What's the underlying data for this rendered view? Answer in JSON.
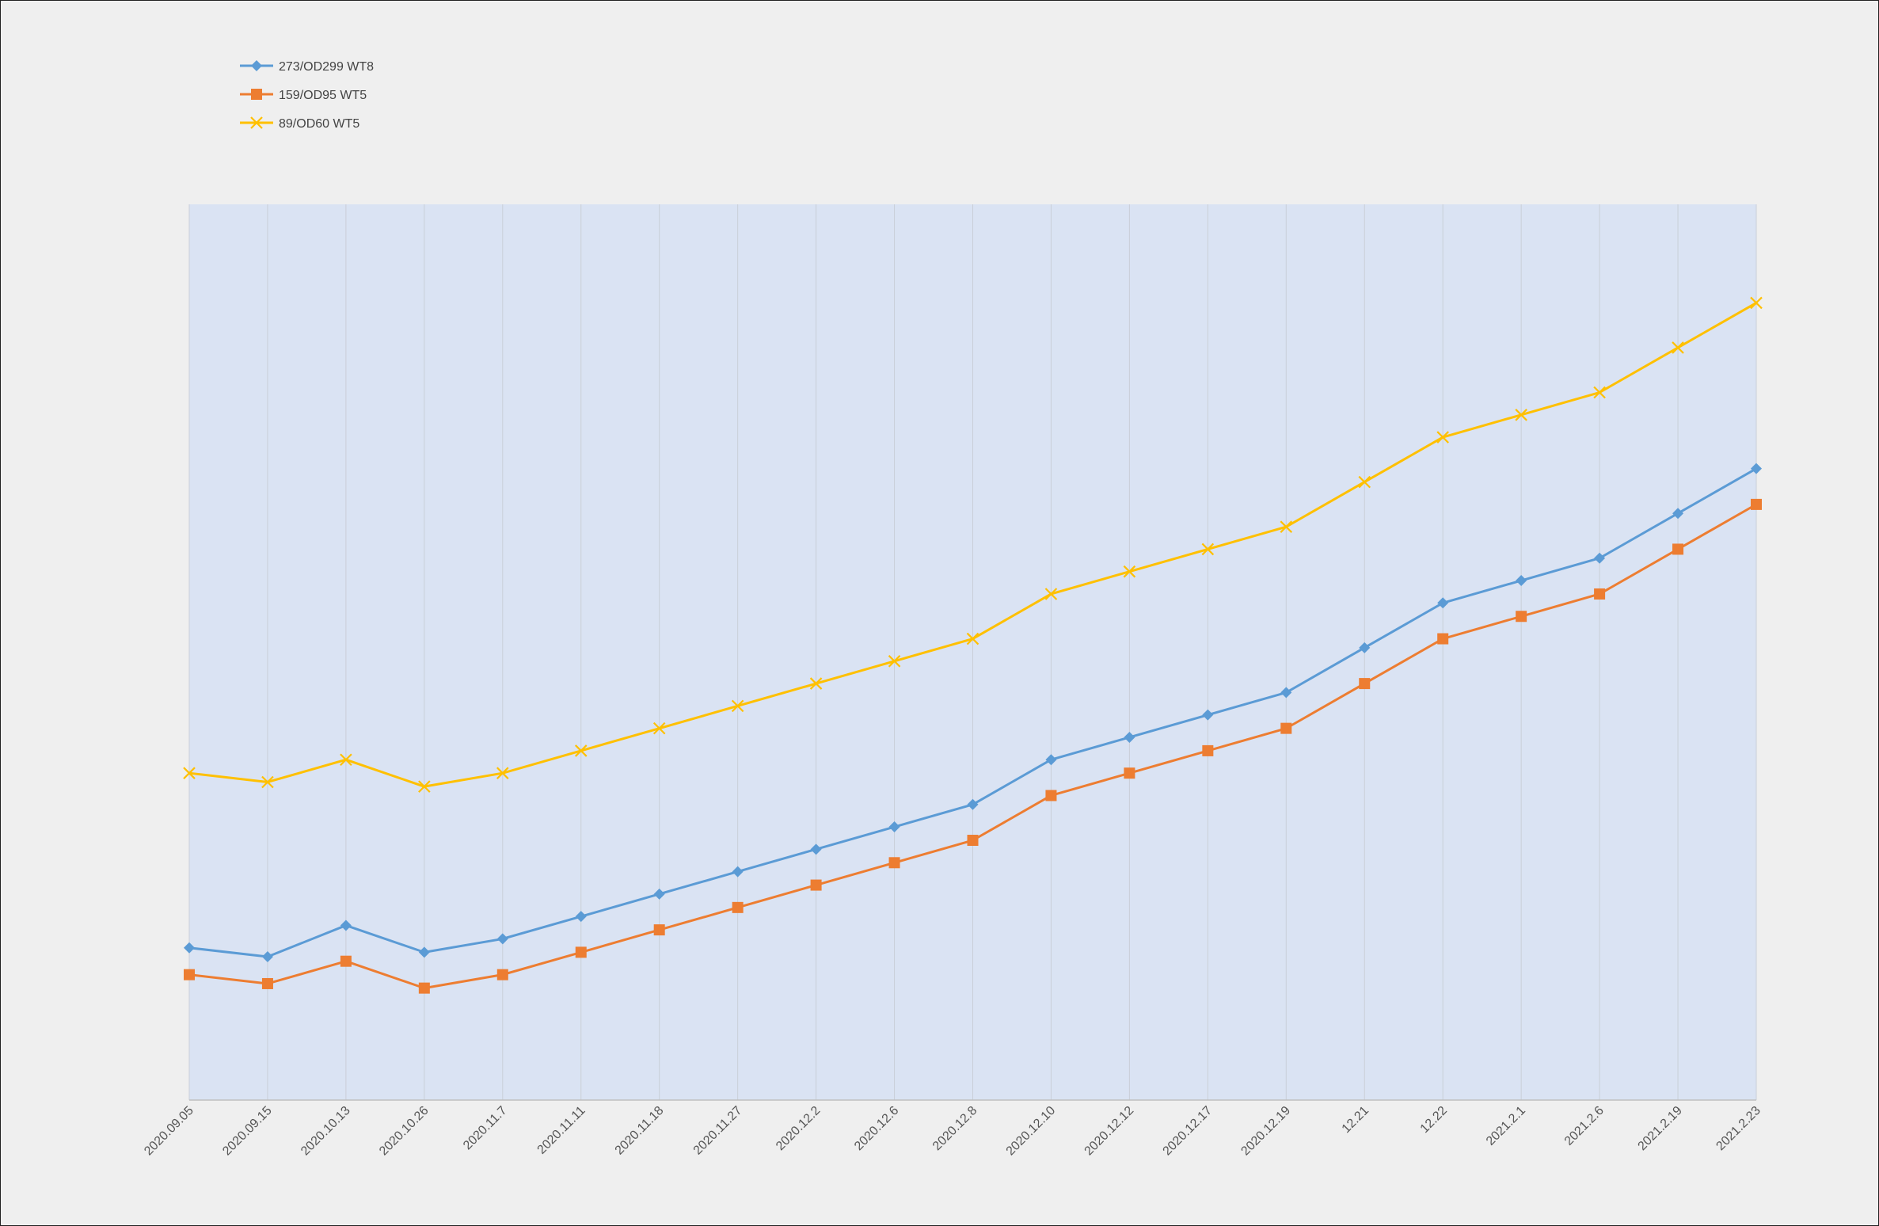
{
  "chart_data": {
    "type": "line",
    "title": "",
    "xlabel": "",
    "ylabel": "",
    "categories": [
      "2020.09.05",
      "2020.09.15",
      "2020.10.13",
      "2020.10.26",
      "2020.11.7",
      "2020.11.11",
      "2020.11.18",
      "2020.11.27",
      "2020.12.2",
      "2020.12.6",
      "2020.12.8",
      "2020.12.10",
      "2020.12.12",
      "2020.12.17",
      "2020.12.19",
      "12.21",
      "12.22",
      "2021.2.1",
      "2021.2.6",
      "2021.2.19",
      "2021.2.23"
    ],
    "ylim": [
      0,
      200
    ],
    "grid": "vertical",
    "legend_position": "top-left",
    "plot_background": "#dae3f3",
    "series": [
      {
        "name": "273/OD299 WT8",
        "color": "#5b9bd5",
        "marker": "diamond",
        "values": [
          34,
          32,
          39,
          33,
          36,
          41,
          46,
          51,
          56,
          61,
          66,
          76,
          81,
          86,
          91,
          101,
          111,
          116,
          121,
          131,
          141
        ]
      },
      {
        "name": "159/OD95 WT5",
        "color": "#ed7d31",
        "marker": "square",
        "values": [
          28,
          26,
          31,
          25,
          28,
          33,
          38,
          43,
          48,
          53,
          58,
          68,
          73,
          78,
          83,
          93,
          103,
          108,
          113,
          123,
          133
        ]
      },
      {
        "name": "89/OD60 WT5",
        "color": "#ffc000",
        "marker": "x",
        "values": [
          73,
          71,
          76,
          70,
          73,
          78,
          83,
          88,
          93,
          98,
          103,
          113,
          118,
          123,
          128,
          138,
          148,
          153,
          158,
          168,
          178
        ]
      }
    ]
  }
}
